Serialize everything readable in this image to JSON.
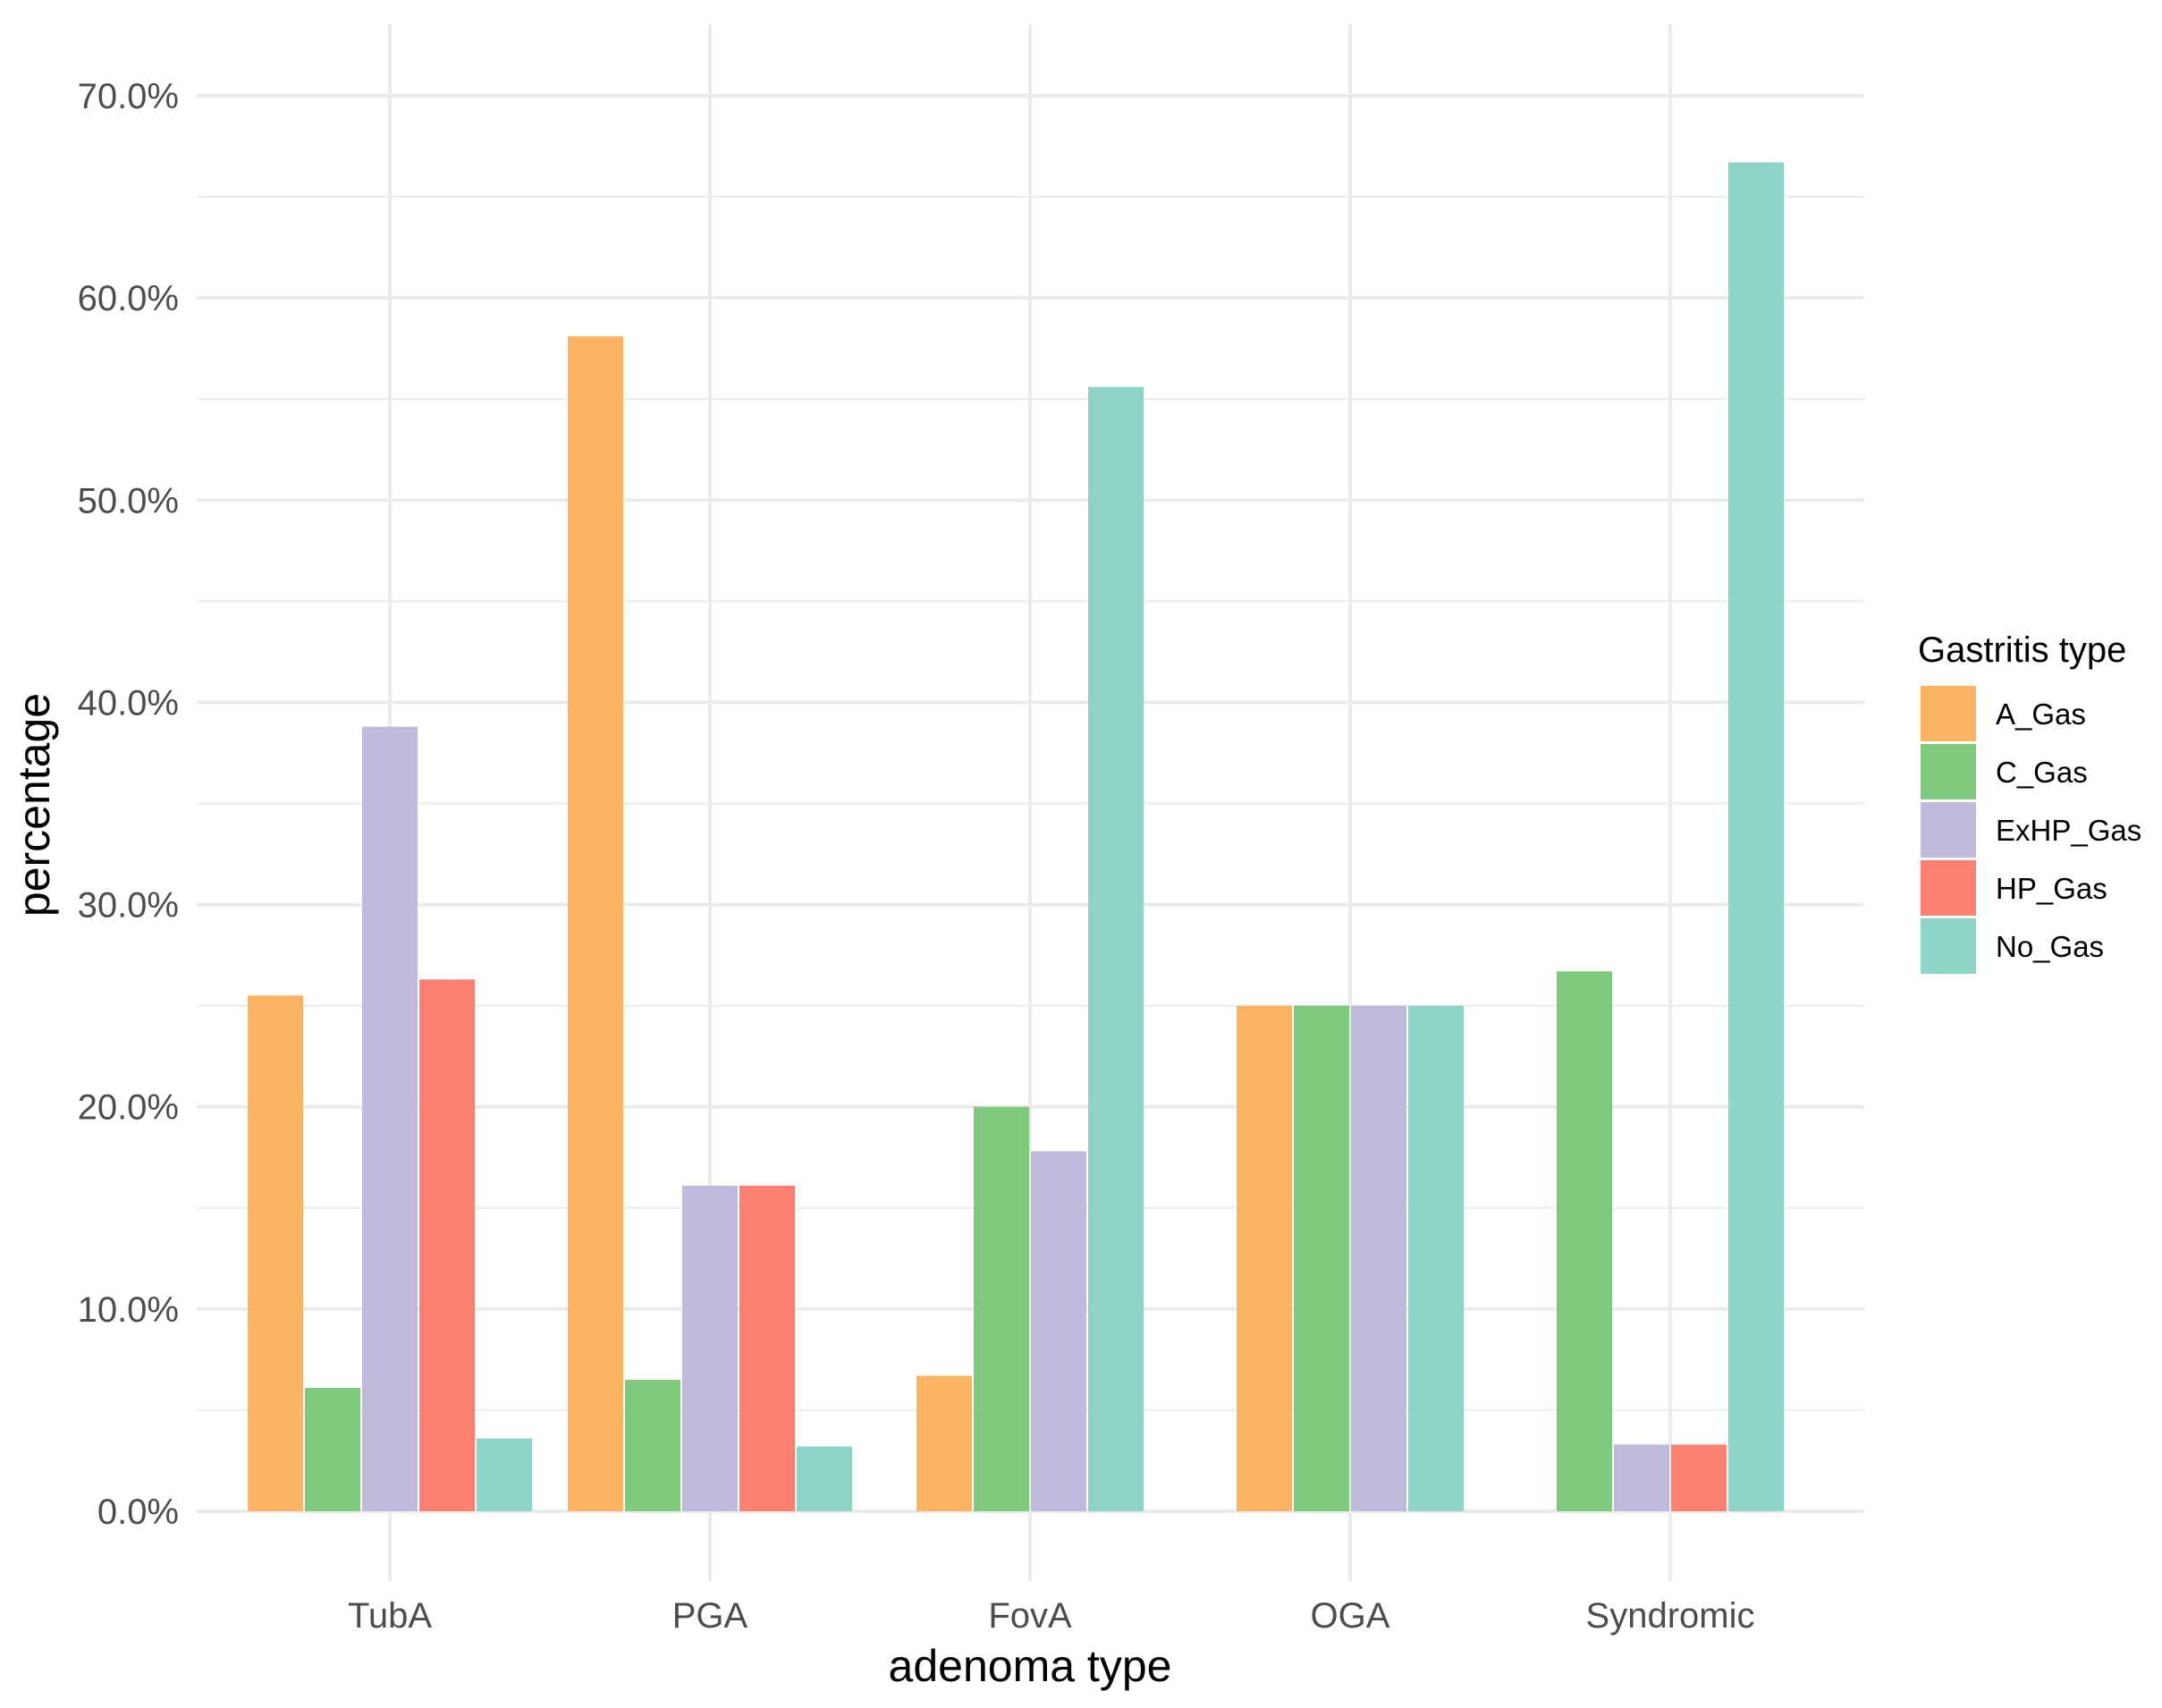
{
  "chart_data": {
    "type": "bar",
    "xlabel": "adenoma type",
    "ylabel": "percentage",
    "ylim": [
      0,
      70
    ],
    "y_ticks": [
      "0.0%",
      "10.0%",
      "20.0%",
      "30.0%",
      "40.0%",
      "50.0%",
      "60.0%",
      "70.0%"
    ],
    "y_tick_values": [
      0,
      10,
      20,
      30,
      40,
      50,
      60,
      70
    ],
    "grid": true,
    "legend_title": "Gastritis type",
    "legend_position": "right",
    "categories": [
      "TubA",
      "PGA",
      "FovA",
      "OGA",
      "Syndromic"
    ],
    "series": [
      {
        "name": "A_Gas",
        "color": "#FDB462",
        "values": [
          25.5,
          58.1,
          6.7,
          25.0,
          null
        ]
      },
      {
        "name": "C_Gas",
        "color": "#7FC97F",
        "values": [
          6.1,
          6.5,
          20.0,
          25.0,
          26.7
        ]
      },
      {
        "name": "ExHP_Gas",
        "color": "#BEBADA",
        "values": [
          38.8,
          16.1,
          17.8,
          25.0,
          3.3
        ]
      },
      {
        "name": "HP_Gas",
        "color": "#FB8072",
        "values": [
          26.3,
          16.1,
          null,
          null,
          3.3
        ]
      },
      {
        "name": "No_Gas",
        "color": "#8DD3C7",
        "values": [
          3.6,
          3.2,
          55.6,
          25.0,
          66.7
        ]
      }
    ]
  }
}
